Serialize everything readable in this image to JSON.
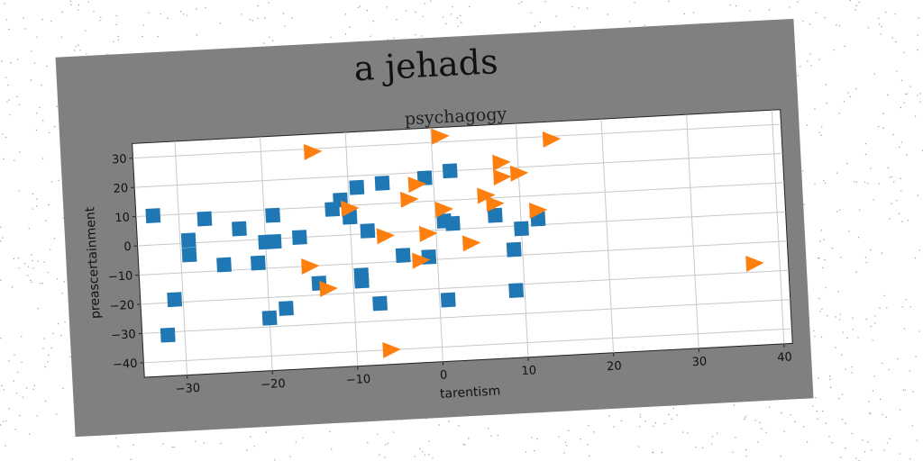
{
  "chart_data": {
    "type": "scatter",
    "title": "a jehads",
    "subtitle": "psychagogy",
    "xlabel": "tarentism",
    "ylabel": "preascertainment",
    "xlim": [
      -35,
      41
    ],
    "ylim": [
      -45,
      35
    ],
    "xticks": [
      -30,
      -20,
      -10,
      0,
      10,
      20,
      30,
      40
    ],
    "yticks": [
      -40,
      -30,
      -20,
      -10,
      0,
      10,
      20,
      30
    ],
    "grid": true,
    "series": [
      {
        "marker": "square",
        "color": "#1f77b4",
        "points": [
          [
            -33,
            10
          ],
          [
            -32,
            -31
          ],
          [
            -31,
            -19
          ],
          [
            -29,
            1
          ],
          [
            -29,
            -4
          ],
          [
            -27,
            8
          ],
          [
            -25,
            -8
          ],
          [
            -23,
            4
          ],
          [
            -21,
            -8
          ],
          [
            -20,
            -27
          ],
          [
            -20,
            -1
          ],
          [
            -19,
            -1
          ],
          [
            -19,
            8
          ],
          [
            -18,
            -24
          ],
          [
            -16,
            0
          ],
          [
            -14,
            -16
          ],
          [
            -12,
            9
          ],
          [
            -11,
            12
          ],
          [
            -10,
            6
          ],
          [
            -9,
            -14
          ],
          [
            -9,
            -16
          ],
          [
            -9,
            16
          ],
          [
            -8,
            1
          ],
          [
            -7,
            -24
          ],
          [
            -6,
            17
          ],
          [
            -4,
            -8
          ],
          [
            -1,
            -9
          ],
          [
            -1,
            18
          ],
          [
            1,
            3
          ],
          [
            1,
            -24
          ],
          [
            2,
            20
          ],
          [
            2,
            2
          ],
          [
            7,
            4
          ],
          [
            9,
            -22
          ],
          [
            9,
            -8
          ],
          [
            10,
            -1
          ],
          [
            12,
            2
          ]
        ]
      },
      {
        "marker": "triangle-right",
        "color": "#ff7f0e",
        "points": [
          [
            -14,
            29
          ],
          [
            -15,
            -10
          ],
          [
            -13,
            -18
          ],
          [
            -10,
            9
          ],
          [
            -6,
            -40
          ],
          [
            -6,
            -1
          ],
          [
            -3,
            11
          ],
          [
            -2,
            16
          ],
          [
            -2,
            -10
          ],
          [
            -1,
            -1
          ],
          [
            1,
            32
          ],
          [
            1,
            7
          ],
          [
            4,
            -5
          ],
          [
            6,
            11
          ],
          [
            7,
            8
          ],
          [
            8,
            22
          ],
          [
            8,
            17
          ],
          [
            10,
            18
          ],
          [
            12,
            5
          ],
          [
            14,
            29
          ],
          [
            37,
            -17
          ]
        ]
      }
    ]
  }
}
